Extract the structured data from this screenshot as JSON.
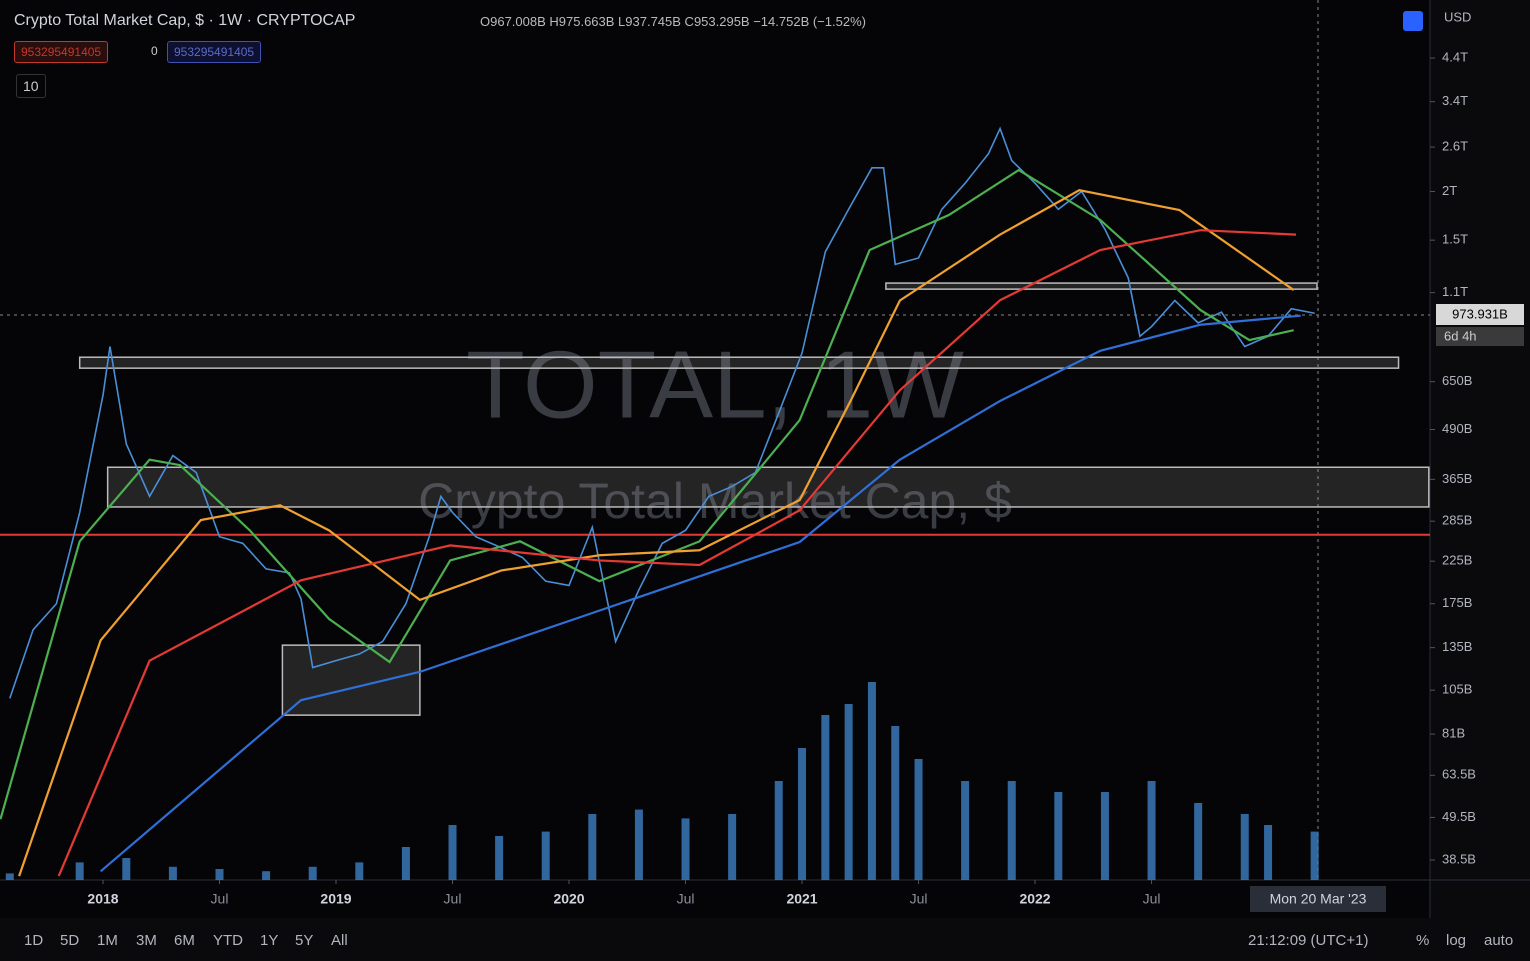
{
  "chart_data": {
    "type": "line",
    "title": "Crypto Total Market Cap, $ · 1W · CRYPTOCAP",
    "ohlc": "O967.008B H975.663B L937.745B C953.295B −14.752B (−1.52%)",
    "watermark": "TOTAL, 1W",
    "watermark_sub": "Crypto Total Market Cap, $",
    "log_scale": true,
    "grid": false,
    "xlim": [
      2017.558,
      2023.695
    ],
    "ylim": [
      34.2,
      6200
    ],
    "xticks": [
      {
        "value": 2018,
        "label": "2018"
      },
      {
        "value": 2018.5,
        "label": "Jul"
      },
      {
        "value": 2019,
        "label": "2019"
      },
      {
        "value": 2019.5,
        "label": "Jul"
      },
      {
        "value": 2020,
        "label": "2020"
      },
      {
        "value": 2020.5,
        "label": "Jul"
      },
      {
        "value": 2021,
        "label": "2021"
      },
      {
        "value": 2021.5,
        "label": "Jul"
      },
      {
        "value": 2022,
        "label": "2022"
      },
      {
        "value": 2022.5,
        "label": "Jul"
      }
    ],
    "yticks": [
      {
        "value": 4400,
        "label": "4.4T"
      },
      {
        "value": 3400,
        "label": "3.4T"
      },
      {
        "value": 2600,
        "label": "2.6T"
      },
      {
        "value": 2000,
        "label": "2T"
      },
      {
        "value": 1500,
        "label": "1.5T"
      },
      {
        "value": 1100,
        "label": "1.1T"
      },
      {
        "value": 650,
        "label": "650B"
      },
      {
        "value": 490,
        "label": "490B"
      },
      {
        "value": 365,
        "label": "365B"
      },
      {
        "value": 285,
        "label": "285B"
      },
      {
        "value": 225,
        "label": "225B"
      },
      {
        "value": 175,
        "label": "175B"
      },
      {
        "value": 135,
        "label": "135B"
      },
      {
        "value": 105,
        "label": "105B"
      },
      {
        "value": 81,
        "label": "81B"
      },
      {
        "value": 63.5,
        "label": "63.5B"
      },
      {
        "value": 49.5,
        "label": "49.5B"
      },
      {
        "value": 38.5,
        "label": "38.5B"
      }
    ],
    "series": [
      {
        "color": "#4a8fd6",
        "x": [
          2017.6,
          2017.7,
          2017.8,
          2017.9,
          2018.0,
          2018.03,
          2018.1,
          2018.2,
          2018.3,
          2018.4,
          2018.5,
          2018.6,
          2018.7,
          2018.8,
          2018.85,
          2018.9,
          2019.0,
          2019.1,
          2019.2,
          2019.3,
          2019.4,
          2019.45,
          2019.5,
          2019.6,
          2019.7,
          2019.8,
          2019.9,
          2020.0,
          2020.1,
          2020.2,
          2020.3,
          2020.4,
          2020.5,
          2020.6,
          2020.7,
          2020.8,
          2020.9,
          2021.0,
          2021.1,
          2021.2,
          2021.3,
          2021.35,
          2021.4,
          2021.5,
          2021.6,
          2021.7,
          2021.8,
          2021.85,
          2021.9,
          2022.0,
          2022.1,
          2022.2,
          2022.3,
          2022.4,
          2022.45,
          2022.5,
          2022.6,
          2022.7,
          2022.8,
          2022.9,
          2023.0,
          2023.1,
          2023.2
        ],
        "values": [
          100,
          150,
          175,
          300,
          600,
          800,
          450,
          330,
          420,
          380,
          260,
          250,
          215,
          210,
          180,
          120,
          125,
          130,
          140,
          175,
          260,
          330,
          300,
          260,
          245,
          230,
          200,
          195,
          275,
          140,
          190,
          250,
          270,
          330,
          350,
          380,
          540,
          770,
          1400,
          1800,
          2300,
          2300,
          1300,
          1350,
          1800,
          2100,
          2500,
          2900,
          2400,
          2100,
          1800,
          2000,
          1600,
          1200,
          850,
          900,
          1050,
          920,
          980,
          800,
          850,
          1000,
          973.931
        ]
      },
      {
        "color": "#4caf50",
        "x": [
          2017.56,
          2017.9,
          2018.2,
          2018.33,
          2018.63,
          2018.97,
          2019.23,
          2019.49,
          2019.79,
          2020.13,
          2020.56,
          2020.99,
          2021.29,
          2021.63,
          2021.93,
          2022.28,
          2022.71,
          2022.92,
          2023.11
        ],
        "values": [
          49,
          253,
          410,
          397,
          270,
          160,
          124,
          226,
          253,
          200,
          253,
          518,
          1415,
          1740,
          2270,
          1690,
          992,
          831,
          881
        ]
      },
      {
        "color": "#f0a030",
        "x": [
          2017.64,
          2017.99,
          2018.42,
          2018.76,
          2018.97,
          2019.36,
          2019.71,
          2020.13,
          2020.56,
          2020.99,
          2021.21,
          2021.42,
          2021.85,
          2022.19,
          2022.62,
          2023.11
        ],
        "values": [
          35,
          141,
          287,
          313,
          270,
          179,
          213,
          233,
          240,
          323,
          583,
          1050,
          1550,
          2015,
          1792,
          1117
        ]
      },
      {
        "color": "#e53935",
        "x": [
          2017.81,
          2018.2,
          2018.85,
          2019.49,
          2020.13,
          2020.56,
          2020.99,
          2021.42,
          2021.85,
          2022.28,
          2022.71,
          2023.12
        ],
        "values": [
          35,
          125,
          201,
          247,
          226,
          220,
          304,
          618,
          1052,
          1415,
          1591,
          1550
        ]
      },
      {
        "color": "#2f6fd6",
        "x": [
          2017.99,
          2018.85,
          2019.36,
          2020.13,
          2020.99,
          2021.42,
          2021.85,
          2022.28,
          2022.71,
          2023.14
        ],
        "values": [
          36,
          99,
          117,
          168,
          252,
          410,
          580,
          780,
          910,
          960
        ]
      }
    ],
    "volume": {
      "color": "#3d7fc4",
      "ylim": [
        0,
        100
      ],
      "x": [
        2017.6,
        2017.9,
        2018.1,
        2018.3,
        2018.5,
        2018.7,
        2018.9,
        2019.1,
        2019.3,
        2019.5,
        2019.7,
        2019.9,
        2020.1,
        2020.3,
        2020.5,
        2020.7,
        2020.9,
        2021.0,
        2021.1,
        2021.2,
        2021.3,
        2021.4,
        2021.5,
        2021.7,
        2021.9,
        2022.1,
        2022.3,
        2022.5,
        2022.7,
        2022.9,
        2023.0,
        2023.2
      ],
      "values": [
        3,
        8,
        10,
        6,
        5,
        4,
        6,
        8,
        15,
        25,
        20,
        22,
        30,
        32,
        28,
        30,
        45,
        60,
        75,
        80,
        90,
        70,
        55,
        45,
        45,
        40,
        40,
        45,
        35,
        30,
        25,
        22
      ]
    },
    "zones": [
      {
        "x": [
          2017.9,
          2023.56
        ],
        "y": [
          704,
          751
        ]
      },
      {
        "x": [
          2018.02,
          2023.69
        ],
        "y": [
          310,
          392
        ]
      },
      {
        "x": [
          2018.77,
          2019.36
        ],
        "y": [
          90.6,
          137
        ]
      },
      {
        "x": [
          2021.36,
          2023.21
        ],
        "y": [
          1123,
          1164
        ]
      }
    ],
    "hline": {
      "value": 263,
      "color": "#e53935"
    }
  },
  "ui": {
    "inputs": [
      "953295491405",
      "0",
      "953295491405"
    ],
    "collapse": "10",
    "currency": "USD",
    "price_tag": "973.931B",
    "countdown": "6d 4h",
    "cursor_date": "Mon 20 Mar '23",
    "ranges": [
      "1D",
      "5D",
      "1M",
      "3M",
      "6M",
      "YTD",
      "1Y",
      "5Y",
      "All"
    ],
    "clock": "21:12:09 (UTC+1)",
    "scale_buttons": [
      "%",
      "log",
      "auto"
    ]
  }
}
